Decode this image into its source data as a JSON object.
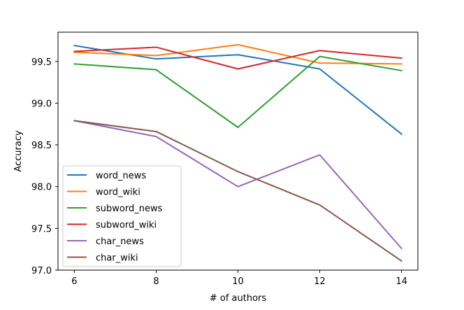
{
  "chart_data": {
    "type": "line",
    "title": "",
    "xlabel": "# of authors",
    "ylabel": "Accuracy",
    "x": [
      6,
      8,
      10,
      12,
      14
    ],
    "xticks": [
      "6",
      "8",
      "10",
      "12",
      "14"
    ],
    "yticks": [
      "97.0",
      "97.5",
      "98.0",
      "98.5",
      "99.0",
      "99.5"
    ],
    "xlim": [
      5.6,
      14.4
    ],
    "ylim": [
      97.0,
      99.85
    ],
    "grid": false,
    "legend_position": "lower-left",
    "series": [
      {
        "name": "word_news",
        "color": "#1f77b4",
        "values": [
          99.69,
          99.53,
          99.58,
          99.41,
          98.63
        ]
      },
      {
        "name": "word_wiki",
        "color": "#ff7f0e",
        "values": [
          99.61,
          99.57,
          99.7,
          99.48,
          99.47
        ]
      },
      {
        "name": "subword_news",
        "color": "#2ca02c",
        "values": [
          99.47,
          99.4,
          98.71,
          99.56,
          99.39
        ]
      },
      {
        "name": "subword_wiki",
        "color": "#d62728",
        "values": [
          99.62,
          99.67,
          99.41,
          99.63,
          99.54
        ]
      },
      {
        "name": "char_news",
        "color": "#9467bd",
        "values": [
          98.79,
          98.6,
          98.0,
          98.38,
          97.26
        ]
      },
      {
        "name": "char_wiki",
        "color": "#8c564b",
        "values": [
          98.79,
          98.66,
          98.18,
          97.78,
          97.11
        ]
      }
    ]
  }
}
